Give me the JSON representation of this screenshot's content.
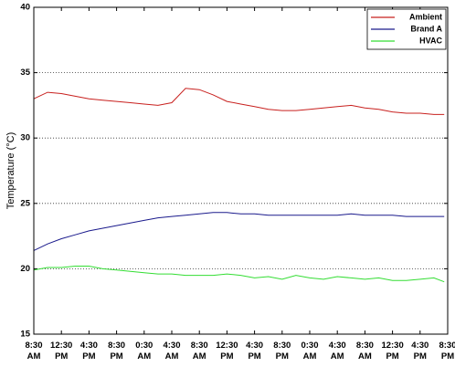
{
  "chart_data": {
    "type": "line",
    "y_label": "Temperature (°C)",
    "xlim": [
      0,
      60
    ],
    "xticks": [
      {
        "value": 0,
        "label": "8:30 AM"
      },
      {
        "value": 4,
        "label": "12:30 PM"
      },
      {
        "value": 8,
        "label": "4:30 PM"
      },
      {
        "value": 12,
        "label": "8:30 PM"
      },
      {
        "value": 16,
        "label": "0:30 AM"
      },
      {
        "value": 20,
        "label": "4:30 AM"
      },
      {
        "value": 24,
        "label": "8:30 AM"
      },
      {
        "value": 28,
        "label": "12:30 PM"
      },
      {
        "value": 32,
        "label": "4:30 PM"
      },
      {
        "value": 36,
        "label": "8:30 PM"
      },
      {
        "value": 40,
        "label": "0:30 AM"
      },
      {
        "value": 44,
        "label": "4:30 AM"
      },
      {
        "value": 48,
        "label": "8:30 AM"
      },
      {
        "value": 52,
        "label": "12:30 PM"
      },
      {
        "value": 56,
        "label": "4:30 PM"
      },
      {
        "value": 60,
        "label": "8:30 PM"
      }
    ],
    "ylim": [
      15,
      40
    ],
    "yticks": [
      15,
      20,
      25,
      30,
      35,
      40
    ],
    "grid": true,
    "legend": "upper right",
    "x": [
      0,
      2,
      4,
      6,
      8,
      10,
      12,
      14,
      16,
      18,
      20,
      22,
      24,
      26,
      28,
      30,
      32,
      34,
      36,
      38,
      40,
      42,
      44,
      46,
      48,
      50,
      52,
      54,
      56,
      58,
      59.5
    ],
    "series": [
      {
        "name": "Ambient",
        "color": "#c8201e",
        "values": [
          33.0,
          33.5,
          33.4,
          33.2,
          33.0,
          32.9,
          32.8,
          32.7,
          32.6,
          32.5,
          32.7,
          33.8,
          33.7,
          33.3,
          32.8,
          32.6,
          32.4,
          32.2,
          32.1,
          32.1,
          32.2,
          32.3,
          32.4,
          32.5,
          32.3,
          32.2,
          32.0,
          31.9,
          31.9,
          31.8,
          31.8
        ]
      },
      {
        "name": "Brand A",
        "color": "#1a1a8c",
        "values": [
          21.4,
          21.9,
          22.3,
          22.6,
          22.9,
          23.1,
          23.3,
          23.5,
          23.7,
          23.9,
          24.0,
          24.1,
          24.2,
          24.3,
          24.3,
          24.2,
          24.2,
          24.1,
          24.1,
          24.1,
          24.1,
          24.1,
          24.1,
          24.2,
          24.1,
          24.1,
          24.1,
          24.0,
          24.0,
          24.0,
          24.0
        ]
      },
      {
        "name": "HVAC",
        "color": "#33dd33",
        "values": [
          19.9,
          20.1,
          20.1,
          20.2,
          20.2,
          20.0,
          19.9,
          19.8,
          19.7,
          19.6,
          19.6,
          19.5,
          19.5,
          19.5,
          19.6,
          19.5,
          19.3,
          19.4,
          19.2,
          19.5,
          19.3,
          19.2,
          19.4,
          19.3,
          19.2,
          19.3,
          19.1,
          19.1,
          19.2,
          19.3,
          19.0
        ]
      }
    ]
  }
}
